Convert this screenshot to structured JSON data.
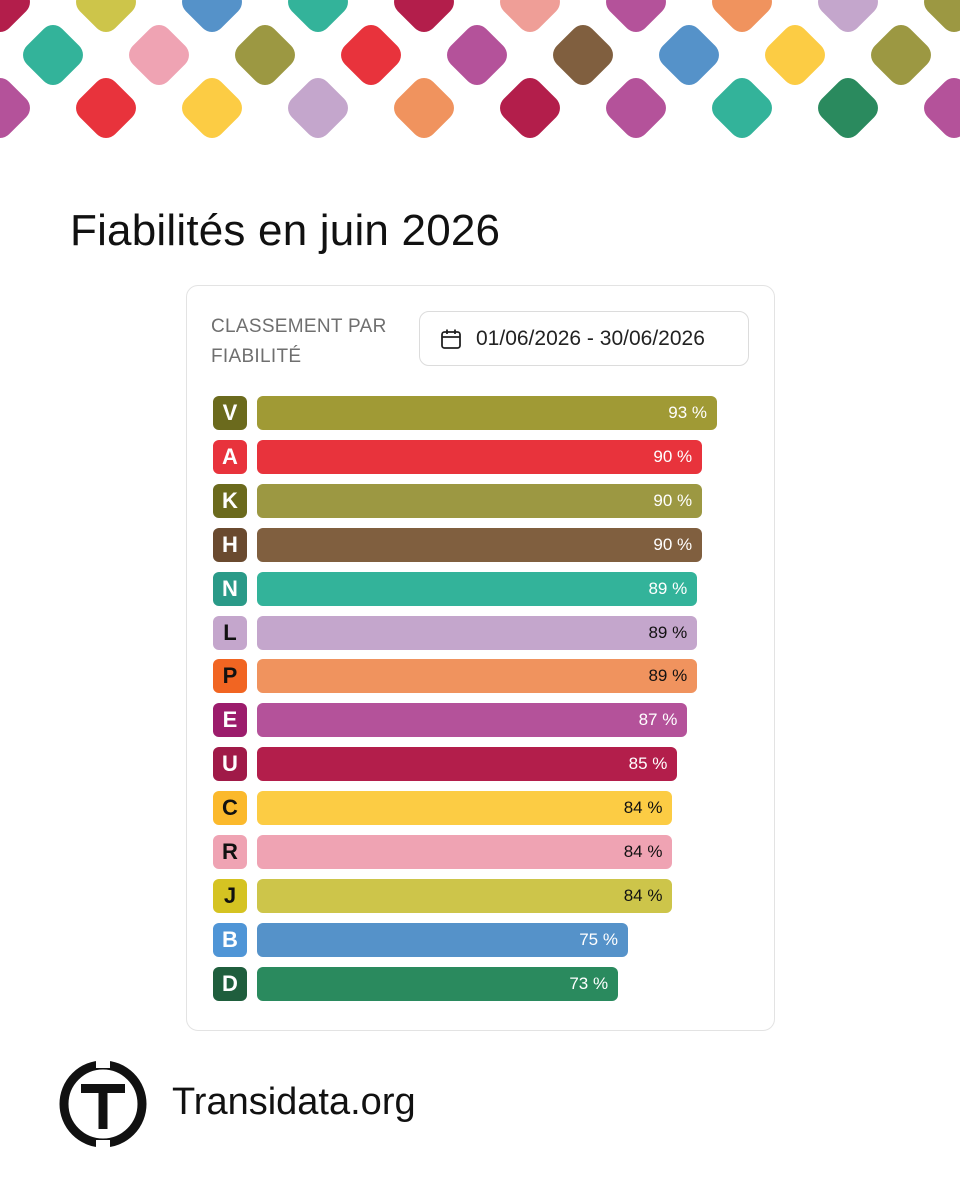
{
  "header": {
    "title": "Fiabilités en juin 2026"
  },
  "card": {
    "label": "CLASSEMENT PAR FIABILITÉ",
    "date_range": "01/06/2026 - 30/06/2026",
    "calendar_icon": "calendar-icon"
  },
  "pattern_colors": [
    "#b31e4b",
    "#cdc54a",
    "#5592c9",
    "#33b39a",
    "#b4529a",
    "#ef9e97",
    "#f0935e",
    "#c4a6cc",
    "#9c9842",
    "#e8333c",
    "#805f3f",
    "#2a8a5e",
    "#fccc44",
    "#efa3b3"
  ],
  "chart_data": {
    "type": "bar",
    "orientation": "horizontal",
    "title": "",
    "xlabel": "",
    "ylabel": "",
    "xlim": [
      0,
      93
    ],
    "unit": "%",
    "grid": false,
    "categories": [
      "V",
      "A",
      "K",
      "H",
      "N",
      "L",
      "P",
      "E",
      "U",
      "C",
      "R",
      "J",
      "B",
      "D"
    ],
    "values": [
      93,
      90,
      90,
      90,
      89,
      89,
      89,
      87,
      85,
      84,
      84,
      84,
      75,
      73
    ],
    "labels": [
      "93 %",
      "90 %",
      "90 %",
      "90 %",
      "89 %",
      "89 %",
      "89 %",
      "87 %",
      "85 %",
      "84 %",
      "84 %",
      "84 %",
      "75 %",
      "73 %"
    ],
    "bar_colors": [
      "#a09a35",
      "#e8333c",
      "#9c9842",
      "#805f3f",
      "#33b39a",
      "#c4a6cc",
      "#f0935e",
      "#b4529a",
      "#b31e4b",
      "#fccc44",
      "#efa3b3",
      "#cdc54a",
      "#5592c9",
      "#2a8a5e"
    ],
    "badge_colors": [
      "#6b6a1d",
      "#e8333c",
      "#6b6a1d",
      "#6a4a2f",
      "#2a9a88",
      "#c4a6cc",
      "#f16522",
      "#9c1c6c",
      "#a01a48",
      "#fbb92c",
      "#efa3b3",
      "#d5c322",
      "#4f95d6",
      "#1f5e3d"
    ],
    "badge_text_colors": [
      "#ffffff",
      "#ffffff",
      "#ffffff",
      "#ffffff",
      "#ffffff",
      "#111111",
      "#111111",
      "#ffffff",
      "#ffffff",
      "#111111",
      "#111111",
      "#111111",
      "#ffffff",
      "#ffffff"
    ],
    "value_text_colors": [
      "#ffffff",
      "#ffffff",
      "#ffffff",
      "#ffffff",
      "#ffffff",
      "#111111",
      "#111111",
      "#ffffff",
      "#ffffff",
      "#111111",
      "#111111",
      "#111111",
      "#ffffff",
      "#ffffff"
    ]
  },
  "footer": {
    "brand": "Transidata.org",
    "logo_icon": "transidata-logo-icon"
  }
}
